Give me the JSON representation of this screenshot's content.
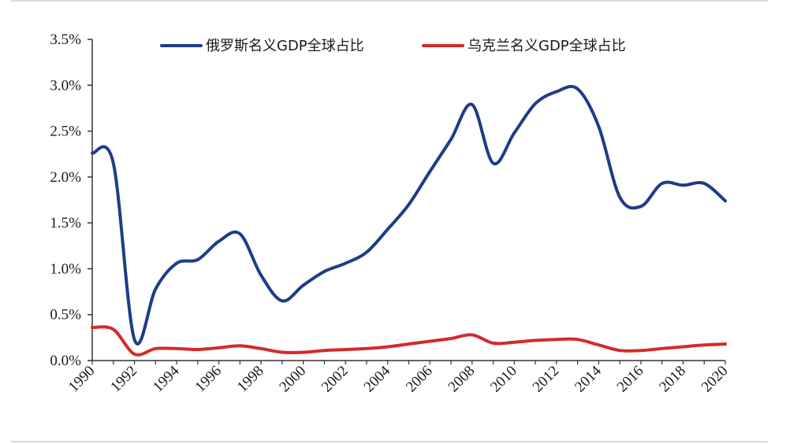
{
  "chart_data": {
    "type": "line",
    "title": "",
    "xlabel": "",
    "ylabel": "",
    "x": [
      1990,
      1991,
      1992,
      1993,
      1994,
      1995,
      1996,
      1997,
      1998,
      1999,
      2000,
      2001,
      2002,
      2003,
      2004,
      2005,
      2006,
      2007,
      2008,
      2009,
      2010,
      2011,
      2012,
      2013,
      2014,
      2015,
      2016,
      2017,
      2018,
      2019,
      2020
    ],
    "xlim": [
      1990,
      2020
    ],
    "ylim": [
      0,
      3.5
    ],
    "x_ticks": [
      "1990",
      "1992",
      "1994",
      "1996",
      "1998",
      "2000",
      "2002",
      "2004",
      "2006",
      "2008",
      "2010",
      "2012",
      "2014",
      "2016",
      "2018",
      "2020"
    ],
    "y_ticks": [
      "0.0%",
      "0.5%",
      "1.0%",
      "1.5%",
      "2.0%",
      "2.5%",
      "3.0%",
      "3.5%"
    ],
    "legend_position": "top",
    "series": [
      {
        "name": "俄罗斯名义GDP全球占比",
        "color": "#1f3c88",
        "values": [
          2.26,
          2.15,
          0.23,
          0.78,
          1.06,
          1.1,
          1.3,
          1.38,
          0.93,
          0.65,
          0.82,
          0.97,
          1.06,
          1.18,
          1.43,
          1.7,
          2.06,
          2.41,
          2.79,
          2.15,
          2.48,
          2.8,
          2.93,
          2.96,
          2.55,
          1.78,
          1.68,
          1.93,
          1.91,
          1.93,
          1.74
        ]
      },
      {
        "name": "乌克兰名义GDP全球占比",
        "color": "#d42a2a",
        "values": [
          0.36,
          0.34,
          0.07,
          0.13,
          0.13,
          0.12,
          0.14,
          0.16,
          0.13,
          0.09,
          0.09,
          0.11,
          0.12,
          0.13,
          0.15,
          0.18,
          0.21,
          0.24,
          0.28,
          0.19,
          0.2,
          0.22,
          0.23,
          0.23,
          0.17,
          0.11,
          0.11,
          0.13,
          0.15,
          0.17,
          0.18
        ]
      }
    ]
  }
}
